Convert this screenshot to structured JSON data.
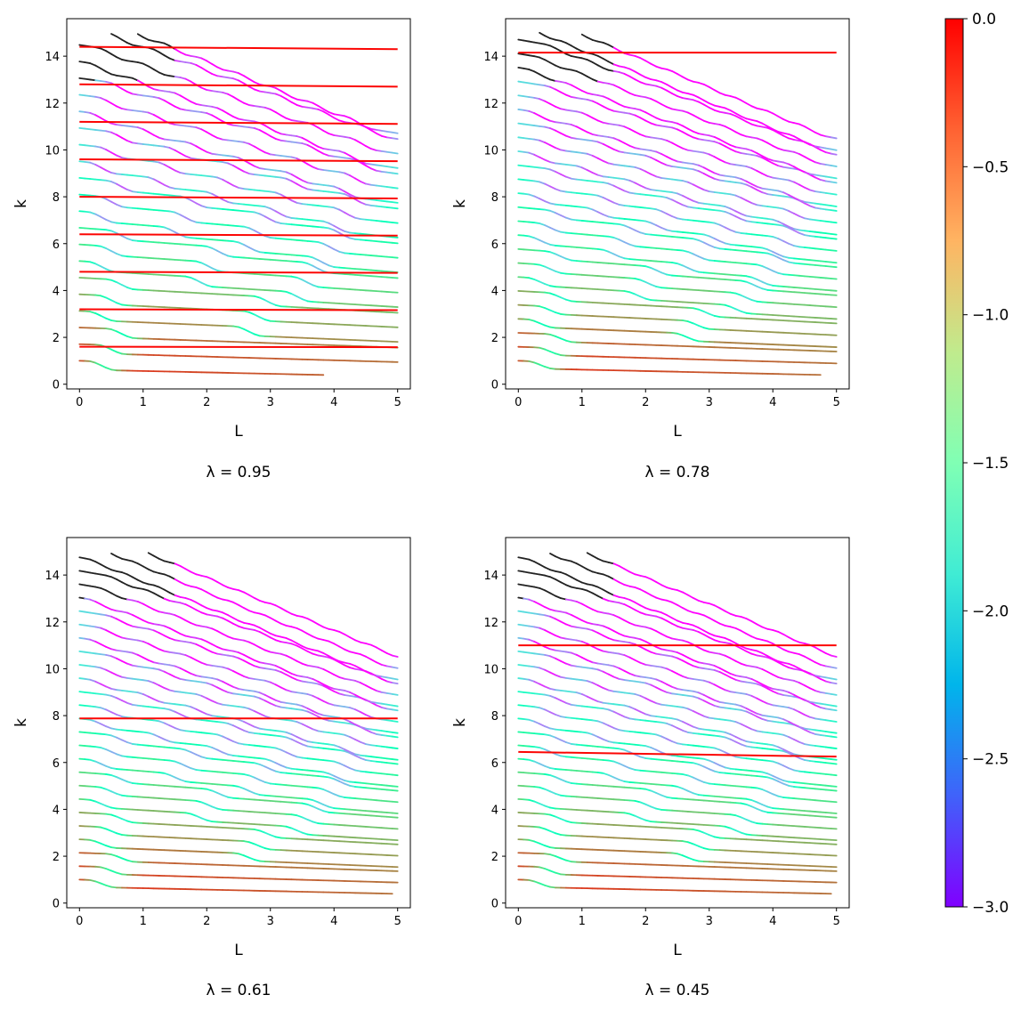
{
  "chart_data": [
    {
      "type": "line",
      "title": "λ = 0.95",
      "lambda": 0.95,
      "xlabel": "L",
      "ylabel": "k",
      "xlim": [
        -0.2,
        5.2
      ],
      "ylim": [
        -0.2,
        15.6
      ],
      "xticks": [
        "0",
        "1",
        "2",
        "3",
        "4",
        "5"
      ],
      "yticks": [
        "0",
        "2",
        "4",
        "6",
        "8",
        "10",
        "12",
        "14"
      ],
      "flat_levels": [
        1.6,
        3.2,
        4.8,
        6.4,
        8.0,
        9.6,
        11.2,
        12.8,
        14.4
      ],
      "flat_decay": [
        0.02,
        0.04,
        0.05,
        0.06,
        0.07,
        0.08,
        0.09,
        0.1,
        0.1
      ],
      "decreasing_curves": 22,
      "kmax": 15
    },
    {
      "type": "line",
      "title": "λ = 0.78",
      "lambda": 0.78,
      "xlabel": "L",
      "ylabel": "k",
      "xlim": [
        -0.2,
        5.2
      ],
      "ylim": [
        -0.2,
        15.6
      ],
      "xticks": [
        "0",
        "1",
        "2",
        "3",
        "4",
        "5"
      ],
      "yticks": [
        "0",
        "2",
        "4",
        "6",
        "8",
        "10",
        "12",
        "14"
      ],
      "flat_levels": [
        14.15
      ],
      "flat_decay": [
        0.0
      ],
      "start_levels": [
        1.75,
        3.5,
        5.3,
        7.0,
        8.8,
        10.6,
        12.3
      ],
      "decreasing_curves": 26,
      "kmax": 15
    },
    {
      "type": "line",
      "title": "λ = 0.61",
      "lambda": 0.61,
      "xlabel": "L",
      "ylabel": "k",
      "xlim": [
        -0.2,
        5.2
      ],
      "ylim": [
        -0.2,
        15.6
      ],
      "xticks": [
        "0",
        "1",
        "2",
        "3",
        "4",
        "5"
      ],
      "yticks": [
        "0",
        "2",
        "4",
        "6",
        "8",
        "10",
        "12",
        "14"
      ],
      "flat_levels": [
        7.88
      ],
      "flat_decay": [
        0.0
      ],
      "start_levels": [
        1.95,
        3.9,
        5.85,
        7.8,
        9.75,
        11.7,
        13.65
      ],
      "decreasing_curves": 27,
      "kmax": 15
    },
    {
      "type": "line",
      "title": "λ = 0.45",
      "lambda": 0.45,
      "xlabel": "L",
      "ylabel": "k",
      "xlim": [
        -0.2,
        5.2
      ],
      "ylim": [
        -0.2,
        15.6
      ],
      "xticks": [
        "0",
        "1",
        "2",
        "3",
        "4",
        "5"
      ],
      "yticks": [
        "0",
        "2",
        "4",
        "6",
        "8",
        "10",
        "12",
        "14"
      ],
      "flat_levels": [
        11.0,
        6.45
      ],
      "flat_decay": [
        0.0,
        0.2
      ],
      "start_levels": [
        2.15,
        4.3,
        5.65,
        8.65,
        10.8,
        12.95
      ],
      "decreasing_curves": 27,
      "kmax": 15
    }
  ],
  "colorbar": {
    "cmap": "rainbow",
    "range": [
      -3.0,
      0.0
    ],
    "ticks": [
      "0.0",
      "−0.5",
      "−1.0",
      "−1.5",
      "−2.0",
      "−2.5",
      "−3.0"
    ],
    "tick_values": [
      0.0,
      -0.5,
      -1.0,
      -1.5,
      -2.0,
      -2.5,
      -3.0
    ]
  }
}
